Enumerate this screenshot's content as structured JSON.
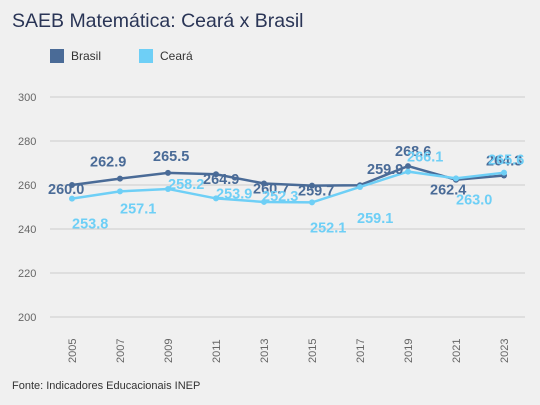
{
  "title": "SAEB Matemática: Ceará x Brasil",
  "source": "Fonte: Indicadores Educacionais INEP",
  "colors": {
    "brasil": "#4a6b97",
    "ceara": "#6ecff6",
    "grid": "#cccccc"
  },
  "chart_data": {
    "type": "line",
    "x": [
      "2005",
      "2007",
      "2009",
      "2011",
      "2013",
      "2015",
      "2017",
      "2019",
      "2021",
      "2023"
    ],
    "ylim": [
      200,
      300
    ],
    "yticks": [
      "200",
      "220",
      "240",
      "260",
      "280",
      "300"
    ],
    "grid": true,
    "legend": "top-left",
    "series": [
      {
        "name": "Brasil",
        "values": [
          260.0,
          262.9,
          265.5,
          264.9,
          260.7,
          259.7,
          259.9,
          268.6,
          262.4,
          264.3
        ],
        "labels": [
          "260.0",
          "262.9",
          "265.5",
          "264.9",
          "260.7",
          "259.7",
          "259.9",
          "268.6",
          "262.4",
          "264.3"
        ]
      },
      {
        "name": "Ceará",
        "values": [
          253.8,
          257.1,
          258.2,
          253.9,
          252.3,
          252.1,
          259.1,
          266.1,
          263.0,
          265.6
        ],
        "labels": [
          "253.8",
          "257.1",
          "258.2",
          "253.9",
          "252.3",
          "252.1",
          "259.1",
          "266.1",
          "263.0",
          "265.6"
        ]
      }
    ]
  }
}
